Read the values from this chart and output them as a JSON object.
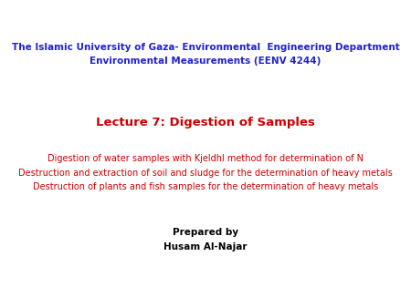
{
  "background_color": "#ffffff",
  "header_line1": "The Islamic University of Gaza- Environmental  Engineering Department",
  "header_line2": "Environmental Measurements (EENV 4244)",
  "header_color": "#2222cc",
  "header_fontsize": 7.5,
  "lecture_title": "Lecture 7: Digestion of Samples",
  "lecture_title_color": "#cc0000",
  "lecture_title_fontsize": 9.5,
  "bullet1": "Digestion of water samples with Kjeldhl method for determination of N",
  "bullet2": "Destruction and extraction of soil and sludge for the determination of heavy metals",
  "bullet3": "Destruction of plants and fish samples for the determination of heavy metals",
  "bullet_color": "#cc0000",
  "bullet_fontsize": 7.0,
  "prepared_by_line1": "Prepared by",
  "prepared_by_line2": "Husam Al-Najar",
  "prepared_color": "#000000",
  "prepared_fontsize": 7.5
}
